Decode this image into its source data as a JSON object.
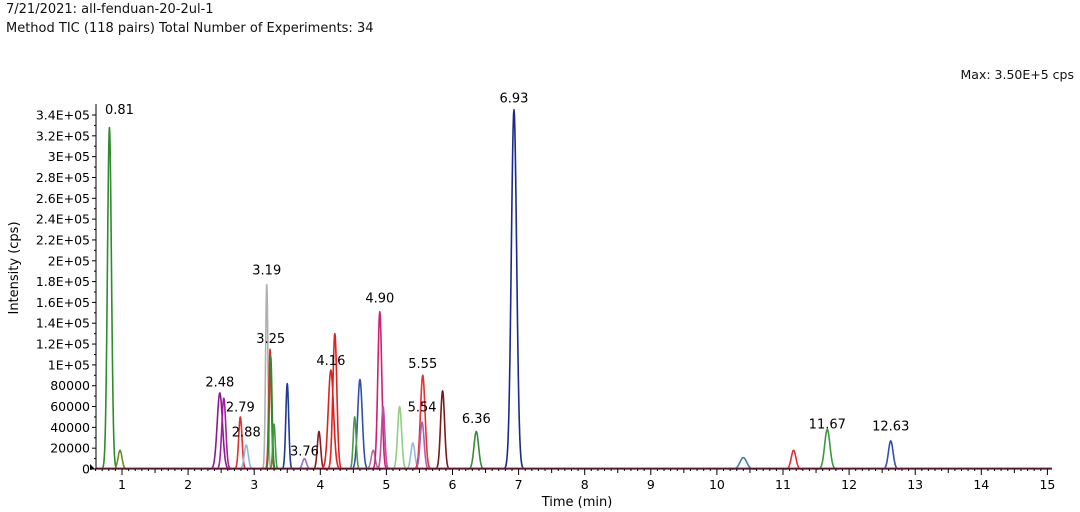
{
  "header": {
    "line1": "7/21/2021: all-fenduan-20-2ul-1",
    "line2": "Method TIC (118 pairs) Total Number of Experiments: 34"
  },
  "max_label": "Max: 3.50E+5 cps",
  "chart_data": {
    "type": "line",
    "title": "Method TIC (118 pairs) Total Number of Experiments: 34",
    "xlabel": "Time (min)",
    "ylabel": "Intensity (cps)",
    "xlim": [
      0.5,
      15.1
    ],
    "ylim": [
      0,
      350000
    ],
    "x_ticks": [
      1,
      2,
      3,
      4,
      5,
      6,
      7,
      8,
      9,
      10,
      11,
      12,
      13,
      14,
      15
    ],
    "x_tick_labels": [
      "1",
      "2",
      "3",
      "4",
      "5",
      "6",
      "7",
      "8",
      "9",
      "10",
      "11",
      "12",
      "13",
      "14",
      "15"
    ],
    "y_ticks": [
      0,
      20000,
      40000,
      60000,
      80000,
      100000,
      120000,
      140000,
      160000,
      180000,
      200000,
      220000,
      240000,
      260000,
      280000,
      300000,
      320000,
      340000
    ],
    "y_tick_labels": [
      "0",
      "20000",
      "40000",
      "60000",
      "80000",
      "1E+05",
      "1.2E+05",
      "1.4E+05",
      "1.6E+05",
      "1.8E+05",
      "2E+05",
      "2.2E+05",
      "2.4E+05",
      "2.6E+05",
      "2.8E+05",
      "3E+05",
      "3.2E+05",
      "3.4E+05"
    ],
    "series": [
      {
        "name": "green-081",
        "color": "#2e8b2e",
        "rt": 0.81,
        "height": 328000,
        "width": 0.03
      },
      {
        "name": "olive-097",
        "color": "#6b8e23",
        "rt": 0.97,
        "height": 18000,
        "width": 0.03
      },
      {
        "name": "purple-248",
        "color": "#8b1a8b",
        "rt": 2.48,
        "height": 73000,
        "width": 0.04
      },
      {
        "name": "purple-254",
        "color": "#a020a0",
        "rt": 2.54,
        "height": 68000,
        "width": 0.03
      },
      {
        "name": "red-279",
        "color": "#e03030",
        "rt": 2.79,
        "height": 50000,
        "width": 0.025
      },
      {
        "name": "lightblue-288",
        "color": "#8fb8d8",
        "rt": 2.88,
        "height": 23000,
        "width": 0.03
      },
      {
        "name": "gray-319",
        "color": "#b0b0b0",
        "rt": 3.19,
        "height": 177000,
        "width": 0.018
      },
      {
        "name": "red-324",
        "color": "#e03030",
        "rt": 3.24,
        "height": 115000,
        "width": 0.02
      },
      {
        "name": "green-325",
        "color": "#2e8b2e",
        "rt": 3.25,
        "height": 108000,
        "width": 0.02
      },
      {
        "name": "green-330",
        "color": "#3c9c3c",
        "rt": 3.3,
        "height": 43000,
        "width": 0.018
      },
      {
        "name": "navy-350",
        "color": "#1f3a93",
        "rt": 3.5,
        "height": 82000,
        "width": 0.022
      },
      {
        "name": "purple-376",
        "color": "#9370db",
        "rt": 3.76,
        "height": 10000,
        "width": 0.03
      },
      {
        "name": "dkred-398",
        "color": "#8b1a1a",
        "rt": 3.98,
        "height": 36000,
        "width": 0.025
      },
      {
        "name": "red-416",
        "color": "#e02020",
        "rt": 4.16,
        "height": 95000,
        "width": 0.04
      },
      {
        "name": "red-422",
        "color": "#e02020",
        "rt": 4.22,
        "height": 130000,
        "width": 0.03
      },
      {
        "name": "blue-460",
        "color": "#3050b0",
        "rt": 4.6,
        "height": 86000,
        "width": 0.035
      },
      {
        "name": "green-452",
        "color": "#4a9a4a",
        "rt": 4.52,
        "height": 50000,
        "width": 0.022
      },
      {
        "name": "mauve-480",
        "color": "#b070a0",
        "rt": 4.8,
        "height": 18000,
        "width": 0.03
      },
      {
        "name": "pink-490",
        "color": "#d02070",
        "rt": 4.9,
        "height": 151000,
        "width": 0.03
      },
      {
        "name": "pink-495",
        "color": "#c050a0",
        "rt": 4.95,
        "height": 60000,
        "width": 0.025
      },
      {
        "name": "ltgreen-520",
        "color": "#8fd080",
        "rt": 5.2,
        "height": 60000,
        "width": 0.03
      },
      {
        "name": "ltblue-540",
        "color": "#9ab8e0",
        "rt": 5.4,
        "height": 25000,
        "width": 0.03
      },
      {
        "name": "red-555",
        "color": "#e83030",
        "rt": 5.55,
        "height": 90000,
        "width": 0.035
      },
      {
        "name": "mauve-554",
        "color": "#b060b0",
        "rt": 5.54,
        "height": 45000,
        "width": 0.03
      },
      {
        "name": "maroon-585",
        "color": "#7a1a1a",
        "rt": 5.85,
        "height": 75000,
        "width": 0.03
      },
      {
        "name": "green-636",
        "color": "#3a8a3a",
        "rt": 6.36,
        "height": 36000,
        "width": 0.035
      },
      {
        "name": "navy-693",
        "color": "#1a2a8a",
        "rt": 6.93,
        "height": 345000,
        "width": 0.04
      },
      {
        "name": "teal-1040",
        "color": "#4080a0",
        "rt": 10.4,
        "height": 11000,
        "width": 0.05
      },
      {
        "name": "red-1116",
        "color": "#e03030",
        "rt": 11.16,
        "height": 18000,
        "width": 0.035
      },
      {
        "name": "green-1167",
        "color": "#3a9a3a",
        "rt": 11.67,
        "height": 38000,
        "width": 0.04
      },
      {
        "name": "blue-1263",
        "color": "#3050b0",
        "rt": 12.63,
        "height": 27000,
        "width": 0.035
      }
    ],
    "annotations": [
      {
        "label": "0.81",
        "x": 0.81,
        "y": 341000
      },
      {
        "label": "6.93",
        "x": 6.93,
        "y": 352000
      },
      {
        "label": "3.19",
        "x": 3.19,
        "y": 187000
      },
      {
        "label": "4.90",
        "x": 4.9,
        "y": 160000
      },
      {
        "label": "3.25",
        "x": 3.25,
        "y": 121000
      },
      {
        "label": "4.16",
        "x": 4.16,
        "y": 100000
      },
      {
        "label": "5.55",
        "x": 5.55,
        "y": 97000
      },
      {
        "label": "2.48",
        "x": 2.48,
        "y": 79000
      },
      {
        "label": "2.79",
        "x": 2.79,
        "y": 55000
      },
      {
        "label": "5.54",
        "x": 5.54,
        "y": 55000
      },
      {
        "label": "2.88",
        "x": 2.88,
        "y": 31000
      },
      {
        "label": "6.36",
        "x": 6.36,
        "y": 44000
      },
      {
        "label": "11.67",
        "x": 11.67,
        "y": 39000
      },
      {
        "label": "12.63",
        "x": 12.63,
        "y": 37000
      },
      {
        "label": "3.76",
        "x": 3.76,
        "y": 13000
      }
    ]
  }
}
